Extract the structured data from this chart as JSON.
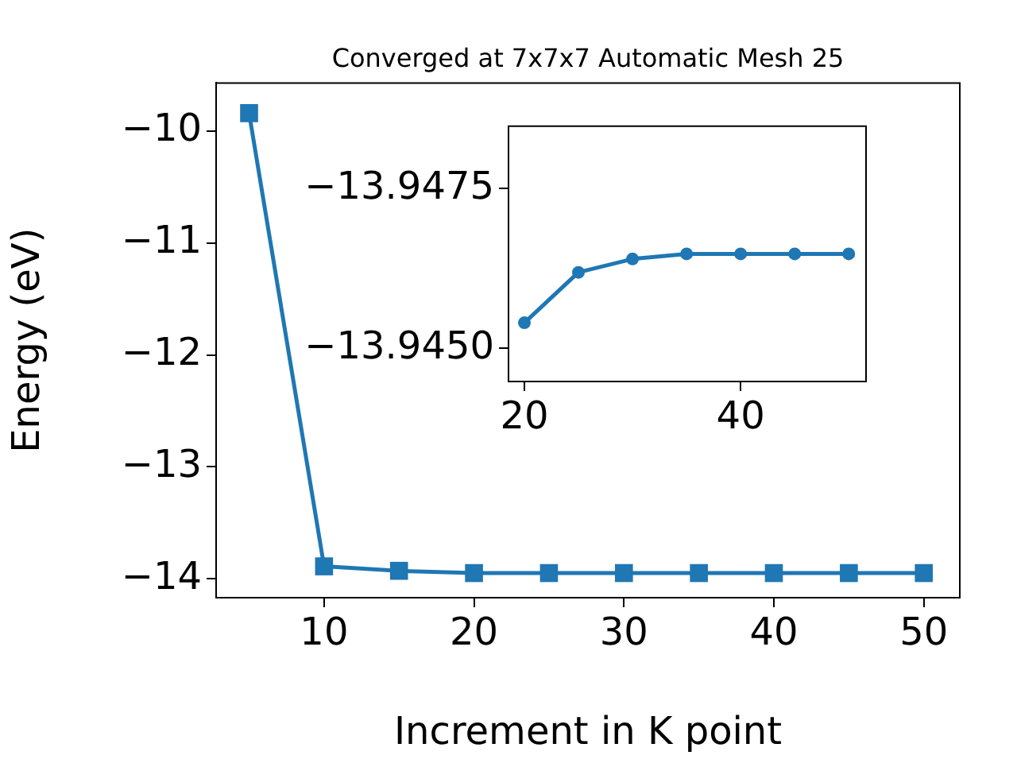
{
  "chart_data": [
    {
      "type": "line",
      "title": "Converged at 7x7x7 Automatic Mesh 25",
      "xlabel": "Increment in K point",
      "ylabel": "Energy (eV)",
      "x": [
        5,
        10,
        15,
        20,
        25,
        30,
        35,
        40,
        45,
        50
      ],
      "series": [
        {
          "color": "#1f77b4",
          "values": [
            -9.84,
            -13.89,
            -13.93,
            -13.95,
            -13.95,
            -13.95,
            -13.95,
            -13.95,
            -13.95,
            -13.95
          ]
        }
      ],
      "xlim": [
        2.8,
        52.4
      ],
      "ylim": [
        -14.17,
        -9.57
      ],
      "xticks": [
        10,
        20,
        30,
        40,
        50
      ],
      "yticks": [
        {
          "value": -14,
          "label": "−14"
        },
        {
          "value": -13,
          "label": "−13"
        },
        {
          "value": -12,
          "label": "−12"
        },
        {
          "value": -11,
          "label": "−11"
        },
        {
          "value": -10,
          "label": "−10"
        }
      ],
      "marker": "square",
      "line_style": "solid",
      "grid": false,
      "legend": false
    },
    {
      "type": "line",
      "x": [
        20,
        25,
        30,
        35,
        40,
        45,
        50
      ],
      "series": [
        {
          "color": "#1f77b4",
          "values": [
            -13.9454,
            -13.94619,
            -13.9464,
            -13.94648,
            -13.94648,
            -13.94648,
            -13.94648
          ]
        }
      ],
      "xlim": [
        18.53,
        51.6
      ],
      "ylim": [
        -13.94448,
        -13.94848
      ],
      "xticks": [
        20,
        40
      ],
      "yticks": [
        {
          "value": -13.945,
          "label": "−13.9450"
        },
        {
          "value": -13.9475,
          "label": "−13.9475"
        }
      ],
      "marker": "circle",
      "line_style": "solid",
      "grid": false,
      "legend": false
    }
  ]
}
